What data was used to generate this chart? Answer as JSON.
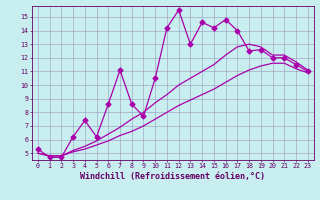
{
  "xlabel": "Windchill (Refroidissement éolien,°C)",
  "bg_color": "#c8eef0",
  "grid_color": "#9999bb",
  "line_color": "#aa00aa",
  "xlim": [
    -0.5,
    23.5
  ],
  "ylim": [
    4.5,
    15.8
  ],
  "xticks": [
    0,
    1,
    2,
    3,
    4,
    5,
    6,
    7,
    8,
    9,
    10,
    11,
    12,
    13,
    14,
    15,
    16,
    17,
    18,
    19,
    20,
    21,
    22,
    23
  ],
  "yticks": [
    5,
    6,
    7,
    8,
    9,
    10,
    11,
    12,
    13,
    14,
    15
  ],
  "line1_x": [
    0,
    1,
    2,
    3,
    4,
    5,
    6,
    7,
    8,
    9,
    10,
    11,
    12,
    13,
    14,
    15,
    16,
    17,
    18,
    19,
    20,
    21,
    22,
    23
  ],
  "line1_y": [
    5.3,
    4.7,
    4.7,
    6.2,
    7.4,
    6.2,
    8.6,
    11.1,
    8.6,
    7.7,
    10.5,
    14.2,
    15.5,
    13.0,
    14.6,
    14.2,
    14.8,
    14.0,
    12.5,
    12.6,
    12.0,
    12.0,
    11.5,
    11.0
  ],
  "line2_x": [
    0,
    1,
    2,
    3,
    4,
    5,
    6,
    7,
    8,
    9,
    10,
    11,
    12,
    13,
    14,
    15,
    16,
    17,
    18,
    19,
    20,
    21,
    22,
    23
  ],
  "line2_y": [
    5.0,
    4.8,
    4.8,
    5.1,
    5.3,
    5.6,
    5.9,
    6.3,
    6.6,
    7.0,
    7.5,
    8.0,
    8.5,
    8.9,
    9.3,
    9.7,
    10.2,
    10.7,
    11.1,
    11.4,
    11.6,
    11.6,
    11.2,
    10.9
  ],
  "line3_x": [
    0,
    1,
    2,
    3,
    4,
    5,
    6,
    7,
    8,
    9,
    10,
    11,
    12,
    13,
    14,
    15,
    16,
    17,
    18,
    19,
    20,
    21,
    22,
    23
  ],
  "line3_y": [
    5.0,
    4.8,
    4.8,
    5.2,
    5.5,
    5.9,
    6.4,
    6.9,
    7.5,
    8.0,
    8.7,
    9.3,
    10.0,
    10.5,
    11.0,
    11.5,
    12.2,
    12.8,
    13.0,
    12.8,
    12.2,
    12.2,
    11.7,
    11.1
  ],
  "marker": "D",
  "markersize": 2.5,
  "linewidth": 0.9,
  "font_color": "#660066",
  "tick_fontsize": 4.8,
  "xlabel_fontsize": 6.0
}
